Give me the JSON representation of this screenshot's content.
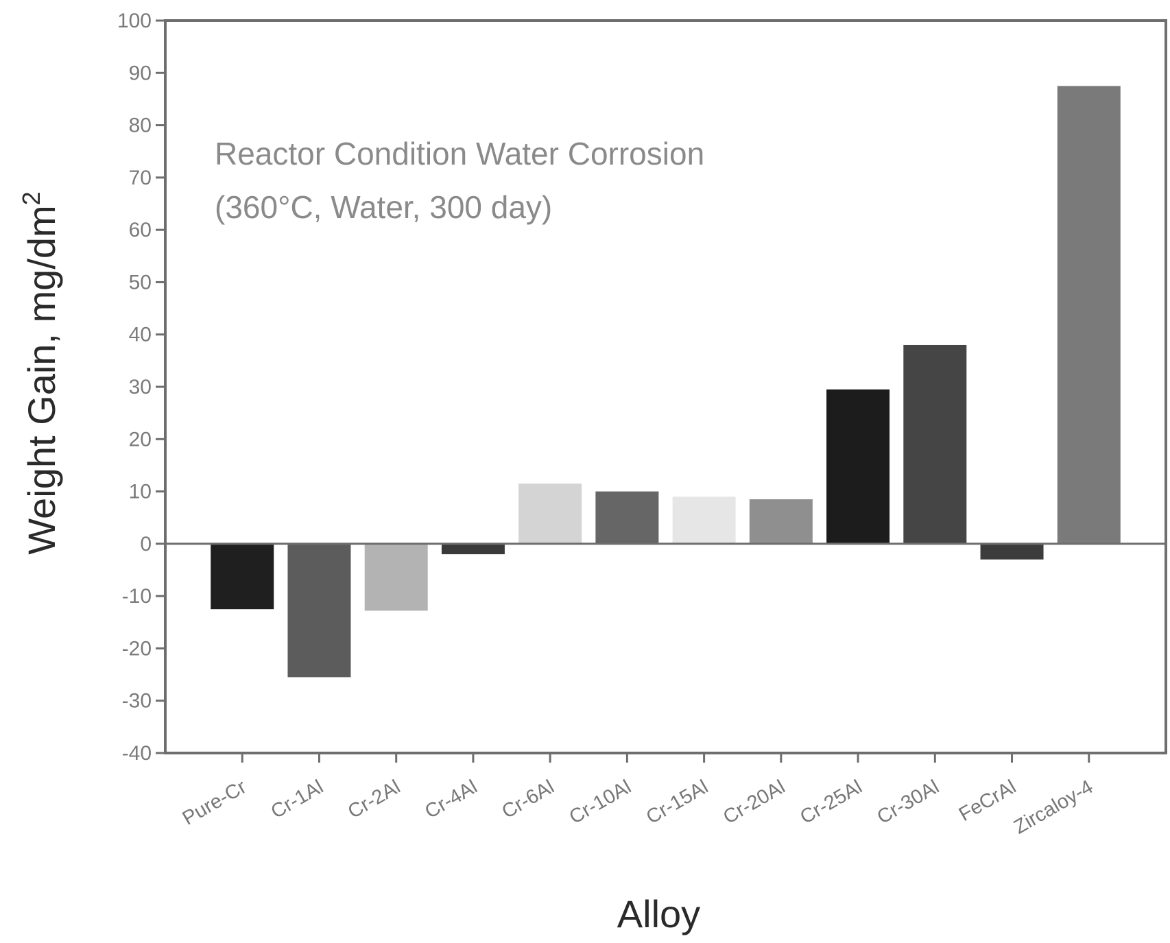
{
  "chart_data": {
    "type": "bar",
    "title": "",
    "xlabel": "Alloy",
    "ylabel": "Weight Gain, mg/dm",
    "ylabel_superscript": "2",
    "ylim": [
      -40,
      100
    ],
    "yticks": [
      100,
      90,
      80,
      70,
      60,
      50,
      40,
      30,
      20,
      10,
      0,
      -10,
      -20,
      -30,
      -40
    ],
    "grid": false,
    "legend": "none",
    "annotation": {
      "line1": "Reactor Condition Water Corrosion",
      "line2": "(360°C, Water, 300 day)"
    },
    "categories": [
      "Pure-Cr",
      "Cr-1Al",
      "Cr-2Al",
      "Cr-4Al",
      "Cr-6Al",
      "Cr-10Al",
      "Cr-15Al",
      "Cr-20Al",
      "Cr-25Al",
      "Cr-30Al",
      "FeCrAl",
      "Zircaloy-4"
    ],
    "values": [
      -12.5,
      -25.5,
      -12.8,
      -2,
      11.5,
      10,
      9,
      8.5,
      29.5,
      38,
      -3,
      87.5
    ],
    "bar_colors": [
      "#1f1f1f",
      "#5c5c5c",
      "#b3b3b3",
      "#3a3a3a",
      "#d4d4d4",
      "#666666",
      "#e6e6e6",
      "#8f8f8f",
      "#1c1c1c",
      "#454545",
      "#3c3c3c",
      "#7a7a7a"
    ]
  }
}
